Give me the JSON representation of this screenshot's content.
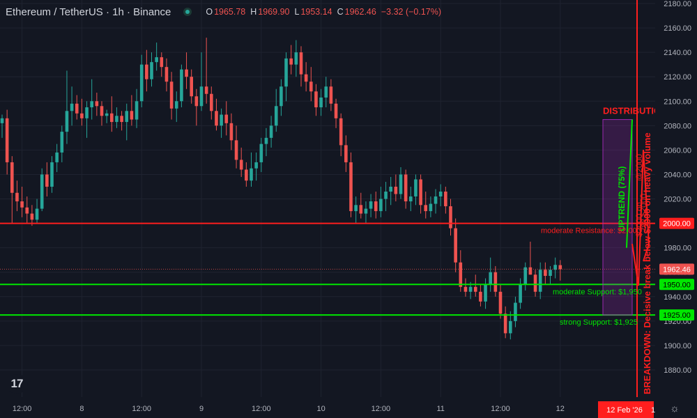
{
  "header": {
    "symbol": "Ethereum / TetherUS · 1h · Binance",
    "open_label": "O",
    "open": "1965.78",
    "high_label": "H",
    "high": "1969.90",
    "low_label": "L",
    "low": "1953.14",
    "close_label": "C",
    "close": "1962.46",
    "change": "−3.32 (−0.17%)"
  },
  "logo_text": "17",
  "settings_icon": "gear-icon",
  "colors": {
    "background": "#131722",
    "up": "#26a69a",
    "down": "#ef5350",
    "support": "#00e600",
    "resistance": "#ff1e1e",
    "axis_text": "#b2b5be"
  },
  "chart_data": {
    "type": "candlestick",
    "y_axis_ticks": [
      1880,
      1900,
      1920,
      1940,
      1960,
      1980,
      2000,
      2020,
      2040,
      2060,
      2080,
      2100,
      2120,
      2140,
      2160,
      2180
    ],
    "y_axis_position": "right",
    "ylim": [
      1874,
      2186
    ],
    "x_axis_ticks": [
      {
        "label": "12:00",
        "index": 4
      },
      {
        "label": "8",
        "index": 16
      },
      {
        "label": "12:00",
        "index": 28
      },
      {
        "label": "9",
        "index": 40
      },
      {
        "label": "12:00",
        "index": 52
      },
      {
        "label": "10",
        "index": 64
      },
      {
        "label": "12:00",
        "index": 76
      },
      {
        "label": "11",
        "index": 88
      },
      {
        "label": "12:00",
        "index": 100
      },
      {
        "label": "12",
        "index": 112
      }
    ],
    "current_date_label": "12 Feb '26",
    "current_date_suffix": "1",
    "candles": [
      [
        2082,
        2089,
        2070,
        2086
      ],
      [
        2086,
        2093,
        2040,
        2050
      ],
      [
        2050,
        2055,
        2000,
        2025
      ],
      [
        2025,
        2035,
        2010,
        2018
      ],
      [
        2018,
        2030,
        2005,
        2013
      ],
      [
        2013,
        2022,
        2000,
        2008
      ],
      [
        2008,
        2015,
        1998,
        2003
      ],
      [
        2003,
        2020,
        2000,
        2012
      ],
      [
        2012,
        2045,
        2010,
        2040
      ],
      [
        2040,
        2050,
        2022,
        2030
      ],
      [
        2030,
        2055,
        2025,
        2050
      ],
      [
        2050,
        2065,
        2042,
        2058
      ],
      [
        2058,
        2080,
        2050,
        2075
      ],
      [
        2075,
        2125,
        2065,
        2092
      ],
      [
        2092,
        2112,
        2080,
        2098
      ],
      [
        2098,
        2105,
        2085,
        2090
      ],
      [
        2090,
        2102,
        2080,
        2086
      ],
      [
        2086,
        2100,
        2070,
        2095
      ],
      [
        2095,
        2118,
        2085,
        2100
      ],
      [
        2100,
        2107,
        2088,
        2096
      ],
      [
        2096,
        2100,
        2080,
        2088
      ],
      [
        2088,
        2093,
        2082,
        2090
      ],
      [
        2090,
        2104,
        2075,
        2083
      ],
      [
        2083,
        2095,
        2078,
        2088
      ],
      [
        2088,
        2092,
        2076,
        2083
      ],
      [
        2083,
        2098,
        2068,
        2092
      ],
      [
        2092,
        2105,
        2080,
        2085
      ],
      [
        2085,
        2110,
        2078,
        2100
      ],
      [
        2100,
        2138,
        2095,
        2130
      ],
      [
        2130,
        2142,
        2108,
        2118
      ],
      [
        2118,
        2140,
        2112,
        2132
      ],
      [
        2132,
        2148,
        2125,
        2136
      ],
      [
        2136,
        2140,
        2120,
        2128
      ],
      [
        2128,
        2135,
        2108,
        2116
      ],
      [
        2116,
        2124,
        2085,
        2094
      ],
      [
        2094,
        2108,
        2083,
        2100
      ],
      [
        2100,
        2130,
        2095,
        2126
      ],
      [
        2126,
        2140,
        2110,
        2120
      ],
      [
        2120,
        2126,
        2098,
        2104
      ],
      [
        2104,
        2110,
        2080,
        2096
      ],
      [
        2096,
        2140,
        2092,
        2112
      ],
      [
        2112,
        2152,
        2098,
        2106
      ],
      [
        2106,
        2112,
        2085,
        2092
      ],
      [
        2092,
        2102,
        2076,
        2080
      ],
      [
        2080,
        2094,
        2070,
        2089
      ],
      [
        2089,
        2100,
        2072,
        2082
      ],
      [
        2082,
        2090,
        2060,
        2068
      ],
      [
        2068,
        2080,
        2045,
        2052
      ],
      [
        2052,
        2062,
        2038,
        2044
      ],
      [
        2044,
        2050,
        2030,
        2035
      ],
      [
        2035,
        2058,
        2030,
        2045
      ],
      [
        2045,
        2058,
        2035,
        2050
      ],
      [
        2050,
        2070,
        2042,
        2065
      ],
      [
        2065,
        2078,
        2055,
        2070
      ],
      [
        2070,
        2088,
        2062,
        2080
      ],
      [
        2080,
        2110,
        2075,
        2096
      ],
      [
        2096,
        2118,
        2088,
        2112
      ],
      [
        2112,
        2140,
        2100,
        2135
      ],
      [
        2135,
        2146,
        2122,
        2130
      ],
      [
        2130,
        2150,
        2120,
        2140
      ],
      [
        2140,
        2145,
        2112,
        2122
      ],
      [
        2122,
        2132,
        2108,
        2116
      ],
      [
        2116,
        2128,
        2100,
        2108
      ],
      [
        2108,
        2114,
        2088,
        2095
      ],
      [
        2095,
        2110,
        2088,
        2103
      ],
      [
        2103,
        2120,
        2095,
        2112
      ],
      [
        2112,
        2118,
        2092,
        2098
      ],
      [
        2098,
        2102,
        2078,
        2086
      ],
      [
        2086,
        2090,
        2055,
        2064
      ],
      [
        2064,
        2072,
        2042,
        2050
      ],
      [
        2050,
        2058,
        2005,
        2010
      ],
      [
        2010,
        2022,
        2000,
        2015
      ],
      [
        2015,
        2025,
        2004,
        2008
      ],
      [
        2008,
        2018,
        2000,
        2012
      ],
      [
        2012,
        2024,
        2005,
        2018
      ],
      [
        2018,
        2026,
        2004,
        2010
      ],
      [
        2010,
        2030,
        2005,
        2020
      ],
      [
        2020,
        2034,
        2010,
        2026
      ],
      [
        2026,
        2038,
        2015,
        2030
      ],
      [
        2030,
        2040,
        2018,
        2024
      ],
      [
        2024,
        2046,
        2020,
        2040
      ],
      [
        2040,
        2044,
        2012,
        2018
      ],
      [
        2018,
        2030,
        2010,
        2022
      ],
      [
        2022,
        2040,
        2015,
        2036
      ],
      [
        2036,
        2040,
        2008,
        2015
      ],
      [
        2015,
        2026,
        2004,
        2010
      ],
      [
        2010,
        2022,
        2005,
        2016
      ],
      [
        2016,
        2028,
        2008,
        2022
      ],
      [
        2022,
        2032,
        2014,
        2026
      ],
      [
        2026,
        2030,
        2008,
        2014
      ],
      [
        2014,
        2020,
        1990,
        1996
      ],
      [
        1996,
        2004,
        1960,
        1968
      ],
      [
        1968,
        1978,
        1944,
        1948
      ],
      [
        1948,
        1955,
        1940,
        1944
      ],
      [
        1944,
        1952,
        1938,
        1948
      ],
      [
        1948,
        1958,
        1940,
        1944
      ],
      [
        1944,
        1950,
        1932,
        1936
      ],
      [
        1936,
        1955,
        1930,
        1950
      ],
      [
        1950,
        1972,
        1944,
        1960
      ],
      [
        1960,
        1965,
        1940,
        1944
      ],
      [
        1944,
        1950,
        1922,
        1926
      ],
      [
        1926,
        1932,
        1906,
        1910
      ],
      [
        1910,
        1928,
        1905,
        1920
      ],
      [
        1920,
        1940,
        1915,
        1935
      ],
      [
        1935,
        1955,
        1930,
        1950
      ],
      [
        1950,
        1968,
        1945,
        1964
      ],
      [
        1964,
        1985,
        1958,
        1958
      ],
      [
        1958,
        1962,
        1940,
        1944
      ],
      [
        1944,
        1968,
        1938,
        1962
      ],
      [
        1962,
        1968,
        1950,
        1957
      ],
      [
        1957,
        1965,
        1950,
        1962
      ],
      [
        1962,
        1972,
        1955,
        1966
      ],
      [
        1965.78,
        1969.9,
        1953.14,
        1962.46
      ]
    ],
    "horizontal_levels": [
      {
        "price": 2000,
        "color": "#ff1e1e",
        "price_label": "2000.00",
        "text": "moderate Resistance: $2,000"
      },
      {
        "price": 1950,
        "color": "#00e600",
        "price_label": "1950.00",
        "text": "moderate Support: $1,950"
      },
      {
        "price": 1925,
        "color": "#00e600",
        "price_label": "1925.00",
        "text": "strong Support: $1,925"
      }
    ],
    "last_price": {
      "price": 1962.46,
      "label": "1962.46"
    },
    "zone": {
      "label": "DISTRIBUTION",
      "top": 2085,
      "bottom": 1925
    },
    "uptrend": {
      "label": "UPTREND (75%)",
      "from": 1980,
      "to": 2085
    },
    "breakdown": {
      "label": "BREAKDOWN: Decisive break below $2000 on heavy volume",
      "overlay": "$2000 on",
      "overlay2": "ow $2000",
      "overlay3": "@2000"
    }
  }
}
